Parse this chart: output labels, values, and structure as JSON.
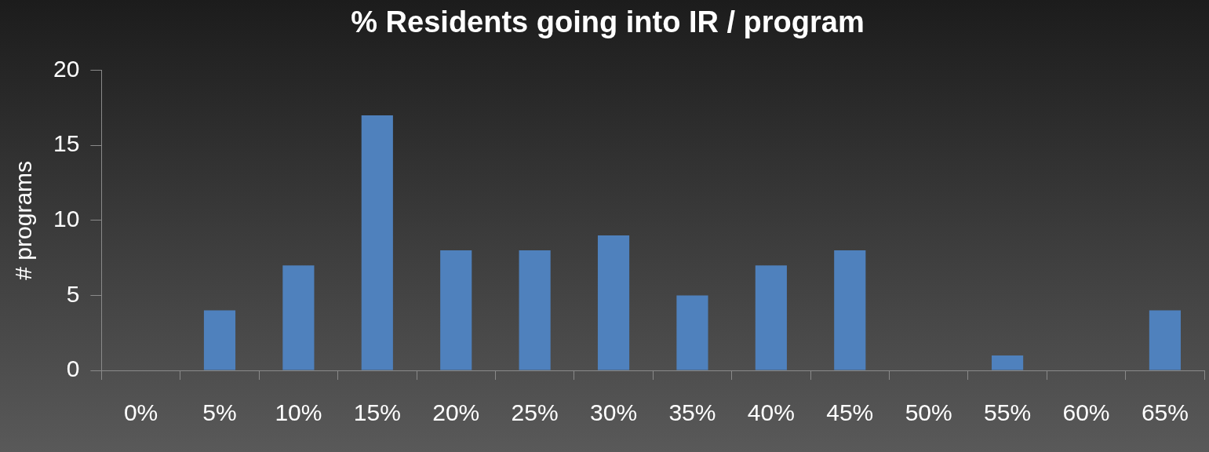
{
  "chart_data": {
    "type": "bar",
    "title": "% Residents going into IR / program",
    "ylabel": "# programs",
    "categories": [
      "0%",
      "5%",
      "10%",
      "15%",
      "20%",
      "25%",
      "30%",
      "35%",
      "40%",
      "45%",
      "50%",
      "55%",
      "60%",
      "65%"
    ],
    "values": [
      0,
      4,
      7,
      17,
      8,
      8,
      9,
      5,
      7,
      8,
      0,
      1,
      0,
      4
    ],
    "color": "#4f81bd",
    "ylim": [
      0,
      20
    ],
    "yticks": [
      0,
      5,
      10,
      15,
      20
    ],
    "grid": false,
    "legend": false
  }
}
